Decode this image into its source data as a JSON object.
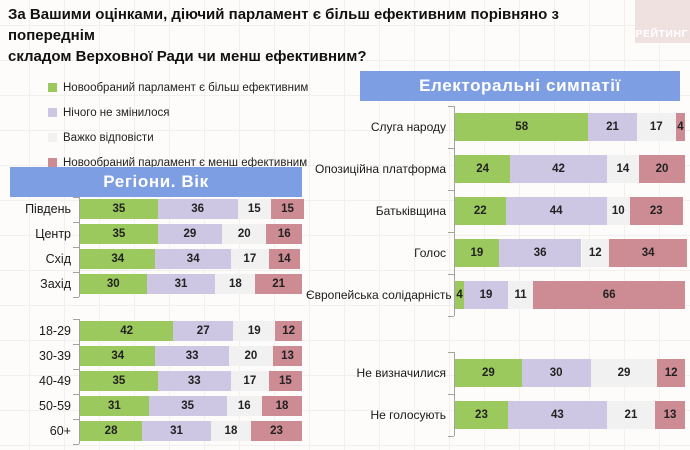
{
  "title": "За Вашими оцінками, діючий парламент є більш ефективним порівняно з попереднім\nскладом Верховної Ради чи менш ефективним?",
  "watermark": {
    "text": "РЕЙТИНГ"
  },
  "colors": {
    "more_effective": "#9bc95e",
    "no_change": "#cdc7e3",
    "hard_to_say": "#f1f1f1",
    "less_effective": "#cd8b94",
    "banner_bg": "#7e9ee3",
    "banner_text": "#ffffff",
    "watermark_bg": "#f0e1e1",
    "watermark_text": "#ffffff"
  },
  "chart_data": {
    "type": "bar",
    "variant": "horizontal-stacked-100",
    "unit": "percent",
    "legend_position": "top-left",
    "series": [
      {
        "name": "Новообраний парламент є більш ефективним",
        "color": "#9bc95e"
      },
      {
        "name": "Нічого не змінилося",
        "color": "#cdc7e3"
      },
      {
        "name": "Важко відповісти",
        "color": "#f1f1f1"
      },
      {
        "name": "Новообраний парламент є менш ефективним",
        "color": "#cd8b94"
      }
    ],
    "panels": [
      {
        "header": "Регіони. Вік",
        "groups": [
          {
            "rows": [
              {
                "label": "Південь",
                "values": [
                  35,
                  36,
                  15,
                  15
                ]
              },
              {
                "label": "Центр",
                "values": [
                  35,
                  29,
                  20,
                  16
                ]
              },
              {
                "label": "Схід",
                "values": [
                  34,
                  34,
                  17,
                  14
                ]
              },
              {
                "label": "Захід",
                "values": [
                  30,
                  31,
                  18,
                  21
                ]
              }
            ]
          },
          {
            "rows": [
              {
                "label": "18-29",
                "values": [
                  42,
                  27,
                  19,
                  12
                ]
              },
              {
                "label": "30-39",
                "values": [
                  34,
                  33,
                  20,
                  13
                ]
              },
              {
                "label": "40-49",
                "values": [
                  35,
                  33,
                  17,
                  15
                ]
              },
              {
                "label": "50-59",
                "values": [
                  31,
                  35,
                  16,
                  18
                ]
              },
              {
                "label": "60+",
                "values": [
                  28,
                  31,
                  18,
                  23
                ]
              }
            ]
          }
        ]
      },
      {
        "header": "Електоральні симпатії",
        "groups": [
          {
            "rows": [
              {
                "label": "Слуга народу",
                "values": [
                  58,
                  21,
                  17,
                  4
                ]
              },
              {
                "label": "Опозиційна платформа",
                "values": [
                  24,
                  42,
                  14,
                  20
                ]
              },
              {
                "label": "Батьківщина",
                "values": [
                  22,
                  44,
                  10,
                  23
                ]
              },
              {
                "label": "Голос",
                "values": [
                  19,
                  36,
                  12,
                  34
                ]
              },
              {
                "label": "Європейська солідарність",
                "values": [
                  4,
                  19,
                  11,
                  66
                ]
              }
            ]
          },
          {
            "rows": [
              {
                "label": "Не визначилися",
                "values": [
                  29,
                  30,
                  29,
                  12
                ]
              },
              {
                "label": "Не голосують",
                "values": [
                  23,
                  43,
                  21,
                  13
                ]
              }
            ]
          }
        ]
      }
    ]
  }
}
